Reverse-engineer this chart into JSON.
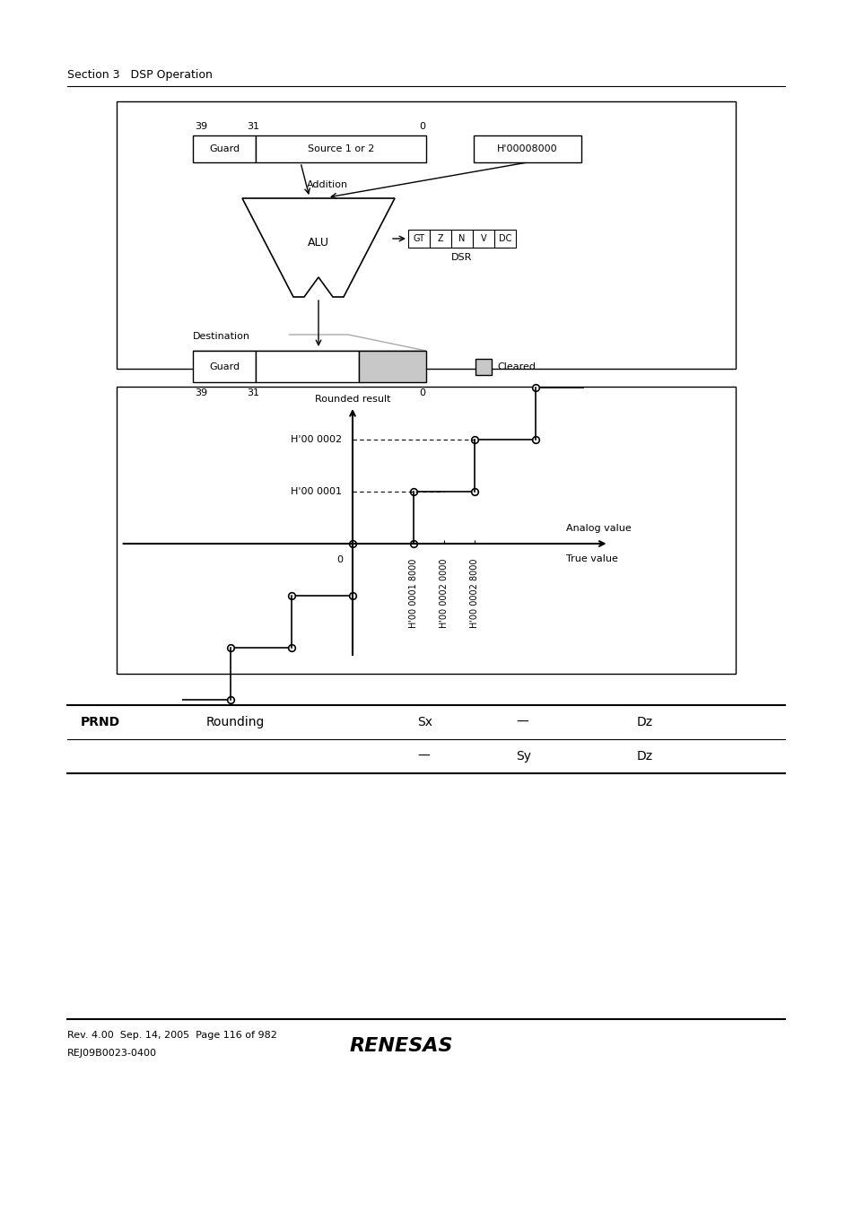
{
  "bg_color": "#ffffff",
  "section_header": "Section 3   DSP Operation",
  "fig1": {
    "source_label": "Source 1 or 2",
    "guard_label": "Guard",
    "h_value": "H'00008000",
    "addition_label": "Addition",
    "alu_label": "ALU",
    "dsr_label": "DSR",
    "dsr_flags": [
      "GT",
      "Z",
      "N",
      "V",
      "DC"
    ],
    "destination_label": "Destination",
    "cleared_label": "Cleared"
  },
  "fig2": {
    "ylabel": "Rounded result",
    "xlabel1": "Analog value",
    "xlabel2": "True value",
    "origin_label": "0",
    "h0001_label": "H'00 0001",
    "h0002_label": "H'00 0002",
    "xticklabels": [
      "H'00 0001 8000",
      "H'00 0002 0000",
      "H'00 0002 8000"
    ]
  },
  "table_row1": [
    "PRND",
    "Rounding",
    "Sx",
    "—",
    "Dz"
  ],
  "table_row2": [
    "",
    "",
    "—",
    "Sy",
    "Dz"
  ],
  "footer_line1": "Rev. 4.00  Sep. 14, 2005  Page 116 of 982",
  "footer_line2": "REJ09B0023-0400",
  "footer_logo": "RENESAS"
}
